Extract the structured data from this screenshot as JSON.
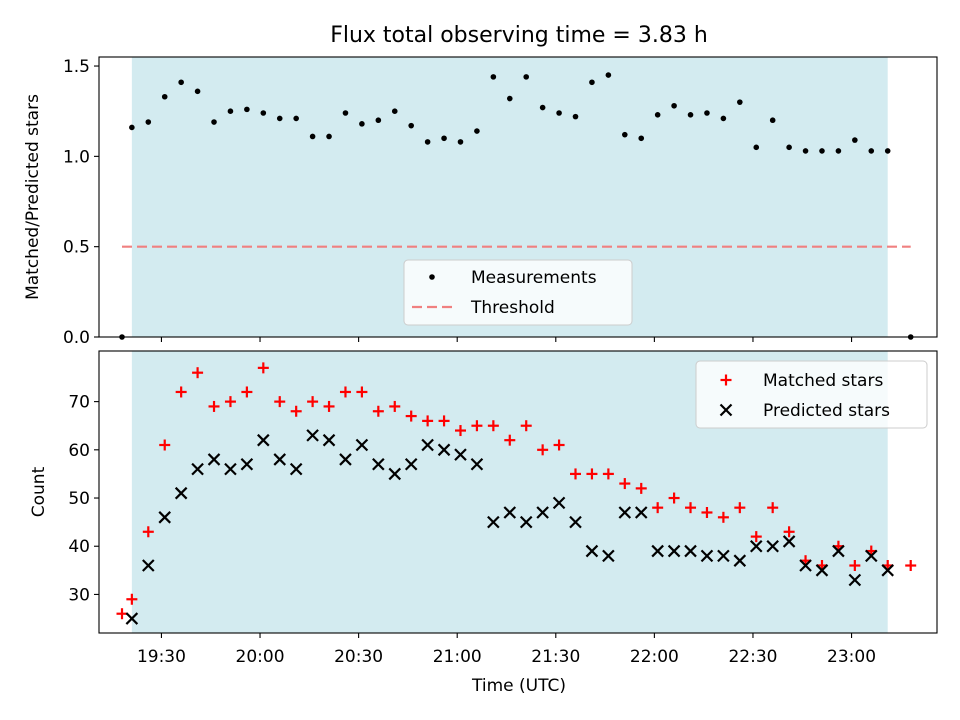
{
  "figure_title": "Flux total observing time = 3.83 h",
  "colors": {
    "observing_window": "#d3ebf0",
    "measurement": "#000000",
    "threshold": "#f08080",
    "matched": "#ff0000",
    "predicted": "#000000"
  },
  "chart_data": [
    {
      "type": "scatter",
      "ylabel": "Matched/Predicted stars",
      "ylim": [
        0,
        1.55
      ],
      "yticks": [
        0.0,
        0.5,
        1.0,
        1.5
      ],
      "yticklabels": [
        "0.0",
        "0.5",
        "1.0",
        "1.5"
      ],
      "x_range": [
        "19:11",
        "23:26"
      ],
      "shaded_region": [
        "19:21",
        "23:11"
      ],
      "threshold": 0.5,
      "legend_position": "lower-center",
      "legend": [
        {
          "label": "Measurements",
          "marker": "dot"
        },
        {
          "label": "Threshold",
          "marker": "dashed-line"
        }
      ],
      "series": [
        {
          "name": "Measurements",
          "x": [
            "19:18",
            "19:21",
            "19:26",
            "19:31",
            "19:36",
            "19:41",
            "19:46",
            "19:51",
            "19:56",
            "20:01",
            "20:06",
            "20:11",
            "20:16",
            "20:21",
            "20:26",
            "20:31",
            "20:36",
            "20:41",
            "20:46",
            "20:51",
            "20:56",
            "21:01",
            "21:06",
            "21:11",
            "21:16",
            "21:21",
            "21:26",
            "21:31",
            "21:36",
            "21:41",
            "21:46",
            "21:51",
            "21:56",
            "22:01",
            "22:06",
            "22:11",
            "22:16",
            "22:21",
            "22:26",
            "22:31",
            "22:36",
            "22:41",
            "22:46",
            "22:51",
            "22:56",
            "23:01",
            "23:06",
            "23:11",
            "23:18"
          ],
          "y": [
            0.0,
            1.16,
            1.19,
            1.33,
            1.41,
            1.36,
            1.19,
            1.25,
            1.26,
            1.24,
            1.21,
            1.21,
            1.11,
            1.11,
            1.24,
            1.18,
            1.2,
            1.25,
            1.17,
            1.08,
            1.1,
            1.08,
            1.14,
            1.44,
            1.32,
            1.44,
            1.27,
            1.24,
            1.22,
            1.41,
            1.45,
            1.12,
            1.1,
            1.23,
            1.28,
            1.23,
            1.24,
            1.21,
            1.3,
            1.05,
            1.2,
            1.05,
            1.03,
            1.03,
            1.03,
            1.09,
            1.03,
            1.03,
            0.0
          ]
        }
      ]
    },
    {
      "type": "scatter",
      "ylabel": "Count",
      "xlabel": "Time (UTC)",
      "ylim": [
        22,
        80.5
      ],
      "yticks": [
        30,
        40,
        50,
        60,
        70
      ],
      "yticklabels": [
        "30",
        "40",
        "50",
        "60",
        "70"
      ],
      "xticks": [
        "19:30",
        "20:00",
        "20:30",
        "21:00",
        "21:30",
        "22:00",
        "22:30",
        "23:00"
      ],
      "xticklabels": [
        "19:30",
        "20:00",
        "20:30",
        "21:00",
        "21:30",
        "22:00",
        "22:30",
        "23:00"
      ],
      "x_range": [
        "19:11",
        "23:26"
      ],
      "shaded_region": [
        "19:21",
        "23:11"
      ],
      "legend_position": "top-right",
      "legend": [
        {
          "label": "Matched stars",
          "marker": "plus"
        },
        {
          "label": "Predicted stars",
          "marker": "cross"
        }
      ],
      "series": [
        {
          "name": "Matched stars",
          "x": [
            "19:18",
            "19:21",
            "19:26",
            "19:31",
            "19:36",
            "19:41",
            "19:46",
            "19:51",
            "19:56",
            "20:01",
            "20:06",
            "20:11",
            "20:16",
            "20:21",
            "20:26",
            "20:31",
            "20:36",
            "20:41",
            "20:46",
            "20:51",
            "20:56",
            "21:01",
            "21:06",
            "21:11",
            "21:16",
            "21:21",
            "21:26",
            "21:31",
            "21:36",
            "21:41",
            "21:46",
            "21:51",
            "21:56",
            "22:01",
            "22:06",
            "22:11",
            "22:16",
            "22:21",
            "22:26",
            "22:31",
            "22:36",
            "22:41",
            "22:46",
            "22:51",
            "22:56",
            "23:01",
            "23:06",
            "23:11",
            "23:18"
          ],
          "y": [
            26,
            29,
            43,
            61,
            72,
            76,
            69,
            70,
            72,
            77,
            70,
            68,
            70,
            69,
            72,
            72,
            68,
            69,
            67,
            66,
            66,
            64,
            65,
            65,
            62,
            65,
            60,
            61,
            55,
            55,
            55,
            53,
            52,
            48,
            50,
            48,
            47,
            46,
            48,
            42,
            48,
            43,
            37,
            36,
            40,
            36,
            39,
            36,
            36
          ]
        },
        {
          "name": "Predicted stars",
          "x": [
            "19:21",
            "19:26",
            "19:31",
            "19:36",
            "19:41",
            "19:46",
            "19:51",
            "19:56",
            "20:01",
            "20:06",
            "20:11",
            "20:16",
            "20:21",
            "20:26",
            "20:31",
            "20:36",
            "20:41",
            "20:46",
            "20:51",
            "20:56",
            "21:01",
            "21:06",
            "21:11",
            "21:16",
            "21:21",
            "21:26",
            "21:31",
            "21:36",
            "21:41",
            "21:46",
            "21:51",
            "21:56",
            "22:01",
            "22:06",
            "22:11",
            "22:16",
            "22:21",
            "22:26",
            "22:31",
            "22:36",
            "22:41",
            "22:46",
            "22:51",
            "22:56",
            "23:01",
            "23:06",
            "23:11"
          ],
          "y": [
            25,
            36,
            46,
            51,
            56,
            58,
            56,
            57,
            62,
            58,
            56,
            63,
            62,
            58,
            61,
            57,
            55,
            57,
            61,
            60,
            59,
            57,
            45,
            47,
            45,
            47,
            49,
            45,
            39,
            38,
            47,
            47,
            39,
            39,
            39,
            38,
            38,
            37,
            40,
            40,
            41,
            36,
            35,
            39,
            33,
            38,
            35
          ]
        }
      ]
    }
  ]
}
